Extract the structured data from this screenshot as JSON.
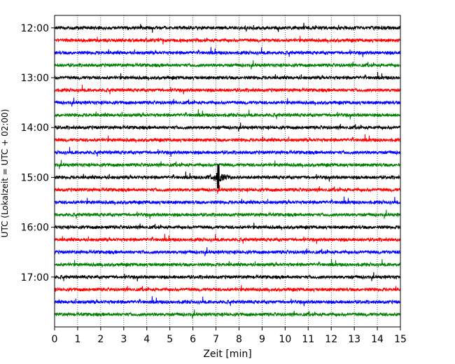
{
  "chart_data": {
    "type": "line",
    "xlabel": "Zeit  [min]",
    "ylabel": "UTC (Lokalzeit = UTC + 02:00)",
    "xlim": [
      0,
      15
    ],
    "ylim": [
      "11:45",
      "18:00"
    ],
    "x_ticks": [
      0,
      1,
      2,
      3,
      4,
      5,
      6,
      7,
      8,
      9,
      10,
      11,
      12,
      13,
      14,
      15
    ],
    "y_ticks": [
      "12:00",
      "13:00",
      "14:00",
      "15:00",
      "16:00",
      "17:00"
    ],
    "grid": "vertical dotted",
    "colors": [
      "#000000",
      "#ff0000",
      "#0000ff",
      "#008000"
    ],
    "traces": [
      {
        "start": "12:00",
        "color": "#000000"
      },
      {
        "start": "12:15",
        "color": "#ff0000"
      },
      {
        "start": "12:30",
        "color": "#0000ff"
      },
      {
        "start": "12:45",
        "color": "#008000"
      },
      {
        "start": "13:00",
        "color": "#000000"
      },
      {
        "start": "13:15",
        "color": "#ff0000"
      },
      {
        "start": "13:30",
        "color": "#0000ff"
      },
      {
        "start": "13:45",
        "color": "#008000"
      },
      {
        "start": "14:00",
        "color": "#000000"
      },
      {
        "start": "14:15",
        "color": "#ff0000"
      },
      {
        "start": "14:30",
        "color": "#0000ff"
      },
      {
        "start": "14:45",
        "color": "#008000"
      },
      {
        "start": "15:00",
        "color": "#000000",
        "event_minute": 7.1
      },
      {
        "start": "15:15",
        "color": "#ff0000"
      },
      {
        "start": "15:30",
        "color": "#0000ff"
      },
      {
        "start": "15:45",
        "color": "#008000"
      },
      {
        "start": "16:00",
        "color": "#000000"
      },
      {
        "start": "16:15",
        "color": "#ff0000"
      },
      {
        "start": "16:30",
        "color": "#0000ff"
      },
      {
        "start": "16:45",
        "color": "#008000"
      },
      {
        "start": "17:00",
        "color": "#000000"
      },
      {
        "start": "17:15",
        "color": "#ff0000"
      },
      {
        "start": "17:30",
        "color": "#0000ff"
      },
      {
        "start": "17:45",
        "color": "#008000"
      }
    ]
  }
}
